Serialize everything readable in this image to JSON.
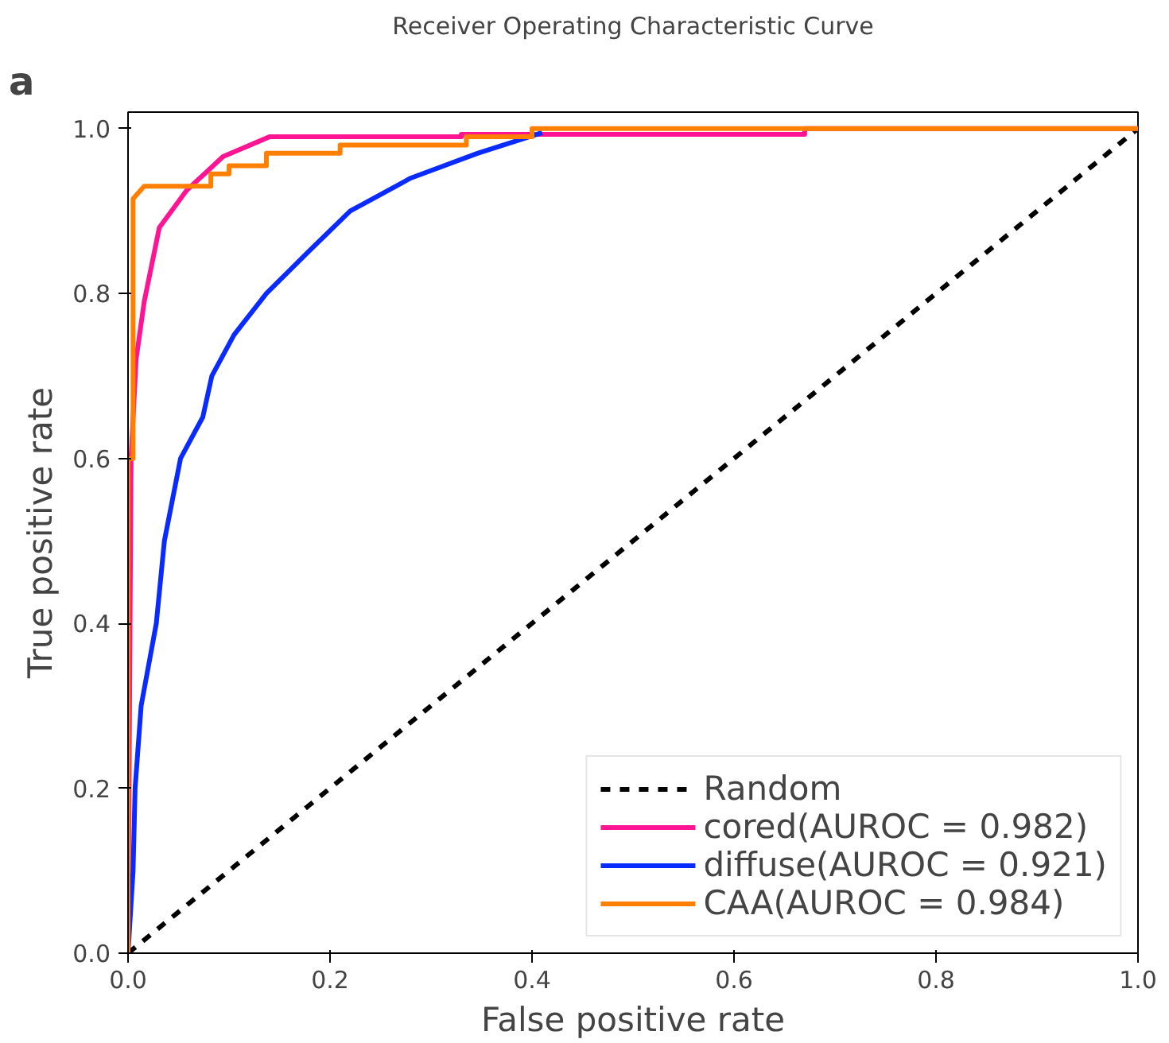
{
  "chart_data": {
    "type": "line",
    "title": "Receiver Operating Characteristic Curve",
    "xlabel": "False positive rate",
    "ylabel": "True positive rate",
    "annotations": [
      "a"
    ],
    "xlim": [
      0,
      1.0
    ],
    "ylim": [
      0,
      1.02
    ],
    "xticks": [
      {
        "value": 0,
        "label": "0.0"
      },
      0.2,
      0.4,
      0.6,
      0.8,
      {
        "value": 1,
        "label": "1.0"
      }
    ],
    "yticks": [
      {
        "value": 0,
        "label": "0.0"
      },
      0.2,
      0.4,
      0.6,
      0.8,
      {
        "value": 1,
        "label": "1.0"
      }
    ],
    "grid": false,
    "legend": "bottom right",
    "marker": "none",
    "series": [
      {
        "name": "Random",
        "color": "#000000",
        "line_style": "dashed",
        "x": [
          0,
          1
        ],
        "values": [
          0,
          1
        ]
      },
      {
        "name": "cored(AUROC = 0.982)",
        "color": "#ff1493",
        "x": [
          0,
          0.003,
          0.008,
          0.016,
          0.031,
          0.058,
          0.094,
          0.14,
          0.33,
          0.33,
          0.67,
          0.67,
          1.0
        ],
        "values": [
          0,
          0.6,
          0.72,
          0.79,
          0.88,
          0.925,
          0.966,
          0.99,
          0.99,
          0.993,
          0.993,
          1.0,
          1.0
        ]
      },
      {
        "name": "diffuse(AUROC = 0.921)",
        "color": "#0a2bff",
        "x": [
          0,
          0.005,
          0.007,
          0.013,
          0.028,
          0.036,
          0.052,
          0.074,
          0.083,
          0.105,
          0.137,
          0.178,
          0.22,
          0.28,
          0.346,
          0.41
        ],
        "values": [
          0,
          0.1,
          0.2,
          0.3,
          0.4,
          0.5,
          0.6,
          0.65,
          0.7,
          0.75,
          0.8,
          0.85,
          0.9,
          0.94,
          0.97,
          0.995
        ]
      },
      {
        "name": "CAA(AUROC = 0.984)",
        "color": "#ff8000",
        "x": [
          0,
          0,
          0.005,
          0.005,
          0.016,
          0.082,
          0.082,
          0.1,
          0.1,
          0.137,
          0.137,
          0.21,
          0.21,
          0.335,
          0.335,
          0.4,
          0.4,
          1.0
        ],
        "values": [
          0,
          0.6,
          0.6,
          0.915,
          0.93,
          0.93,
          0.945,
          0.945,
          0.955,
          0.955,
          0.97,
          0.97,
          0.98,
          0.98,
          0.99,
          0.99,
          1.0,
          1.0
        ]
      }
    ]
  }
}
